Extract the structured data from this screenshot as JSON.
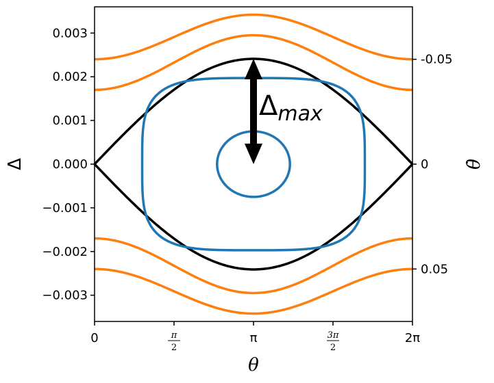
{
  "chart_data": {
    "type": "line",
    "title": "",
    "xlabel": "θ",
    "ylabel": "Δ",
    "ylabel_right": "θ̇",
    "xlim": [
      0,
      6.283185307
    ],
    "ylim": [
      -0.0036,
      0.0036
    ],
    "grid": false,
    "x_ticks": [
      {
        "value": 0,
        "label": "0"
      },
      {
        "value": 1.5707963,
        "label_num": "π",
        "label_den": "2"
      },
      {
        "value": 3.1415927,
        "label": "π"
      },
      {
        "value": 4.712389,
        "label_num": "3π",
        "label_den": "2"
      },
      {
        "value": 6.2831853,
        "label": "2π"
      }
    ],
    "y_ticks": [
      {
        "value": 0.003,
        "label": "0.003"
      },
      {
        "value": 0.002,
        "label": "0.002"
      },
      {
        "value": 0.001,
        "label": "0.001"
      },
      {
        "value": 0.0,
        "label": "0.000"
      },
      {
        "value": -0.001,
        "label": "−0.001"
      },
      {
        "value": -0.002,
        "label": "−0.002"
      },
      {
        "value": -0.003,
        "label": "−0.003"
      }
    ],
    "right_ticks": [
      {
        "value": 0.0024,
        "label": "-0.05"
      },
      {
        "value": 0.0,
        "label": "0"
      },
      {
        "value": -0.0024,
        "label": "0.05"
      }
    ],
    "colors": {
      "separatrix": "#000000",
      "libration": "#1f77b4",
      "circulation": "#ff7f0e"
    },
    "separatrix": {
      "amplitude": 0.00241
    },
    "libration": [
      {
        "half_width_theta": 0.72,
        "delta_max": 0.00075
      },
      {
        "half_width_theta": 2.2,
        "delta_max": 0.00197
      }
    ],
    "circulation": [
      {
        "min": 0.0017,
        "max": 0.00295
      },
      {
        "min": 0.0024,
        "max": 0.00342
      }
    ],
    "annotation": {
      "text_main": "Δ",
      "text_sub": "max",
      "x": 3.1415927,
      "y_from": 0.0,
      "y_to": 0.00241
    }
  }
}
